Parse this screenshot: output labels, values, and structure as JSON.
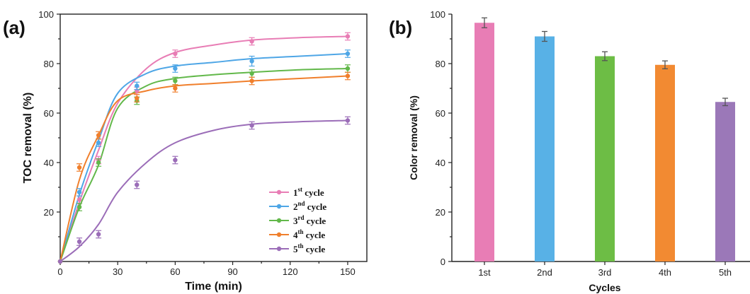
{
  "chart_data": [
    {
      "panel_label": "(a)",
      "type": "scatter",
      "xlabel": "Time (min)",
      "ylabel": "TOC removal  (%)",
      "xlim": [
        0,
        160
      ],
      "ylim": [
        0,
        100
      ],
      "x_ticks": [
        0,
        30,
        60,
        90,
        120,
        150
      ],
      "y_ticks": [
        20,
        40,
        60,
        80,
        100
      ],
      "legend_placement": "lower-right",
      "series": [
        {
          "name_num": "1",
          "name_sup": "st",
          "name_rest": " cycle",
          "color": "#e87db5",
          "x": [
            0,
            10,
            20,
            40,
            60,
            100,
            150
          ],
          "y": [
            0,
            25,
            41,
            69,
            84,
            89,
            91
          ],
          "err": [
            0,
            1.5,
            1.5,
            1.5,
            1.5,
            1.5,
            1.5
          ],
          "fit_y": [
            0,
            24,
            45,
            64,
            78,
            84.5,
            87.5,
            89.5,
            90.5,
            91
          ]
        },
        {
          "name_num": "2",
          "name_sup": "nd",
          "name_rest": " cycle",
          "color": "#4ea6e6",
          "x": [
            0,
            10,
            20,
            40,
            60,
            100,
            150
          ],
          "y": [
            0,
            28,
            48,
            71,
            78,
            81,
            84
          ],
          "err": [
            0,
            1.5,
            1.5,
            1.5,
            1.5,
            2,
            1.5
          ],
          "fit_y": [
            0,
            27,
            49,
            68,
            76,
            79,
            80.5,
            82,
            83,
            84
          ]
        },
        {
          "name_num": "3",
          "name_sup": "rd",
          "name_rest": " cycle",
          "color": "#62b84a",
          "x": [
            0,
            10,
            20,
            40,
            60,
            100,
            150
          ],
          "y": [
            0,
            22,
            40,
            65,
            73,
            76,
            78
          ],
          "err": [
            0,
            1.5,
            1.5,
            1.5,
            1.5,
            1.5,
            1.5
          ],
          "fit_y": [
            0,
            22,
            39,
            62,
            71,
            74,
            75.5,
            76.5,
            77.5,
            78
          ]
        },
        {
          "name_num": "4",
          "name_sup": "th",
          "name_rest": " cycle",
          "color": "#f07f2c",
          "x": [
            0,
            10,
            20,
            40,
            60,
            100,
            150
          ],
          "y": [
            0,
            38,
            51,
            66,
            70,
            73,
            75
          ],
          "err": [
            0,
            1.5,
            1.5,
            1.5,
            1.5,
            1.5,
            1.5
          ],
          "fit_y": [
            0,
            33,
            51,
            65,
            69,
            71,
            72,
            73,
            74,
            75
          ]
        },
        {
          "name_num": "5",
          "name_sup": "th",
          "name_rest": " cycle",
          "color": "#9b6db8",
          "x": [
            0,
            10,
            20,
            40,
            60,
            100,
            150
          ],
          "y": [
            0,
            8,
            11,
            31,
            41,
            55,
            57
          ],
          "err": [
            0,
            1.5,
            1.5,
            1.5,
            1.5,
            1.5,
            1.5
          ],
          "fit_y": [
            0,
            6,
            15,
            28,
            40,
            48,
            53,
            55.5,
            56.5,
            57
          ]
        }
      ],
      "fit_x": [
        0,
        10,
        20,
        30,
        45,
        60,
        80,
        100,
        125,
        150
      ]
    },
    {
      "panel_label": "(b)",
      "type": "bar",
      "xlabel": "Cycles",
      "ylabel": "Color removal (%)",
      "ylim": [
        0,
        100
      ],
      "y_ticks": [
        0,
        20,
        40,
        60,
        80,
        100
      ],
      "categories": [
        "1st",
        "2nd",
        "3rd",
        "4th",
        "5th"
      ],
      "values": [
        96.5,
        91,
        83,
        79.5,
        64.5
      ],
      "errors": [
        2,
        2,
        1.8,
        1.6,
        1.5
      ],
      "colors": [
        "#e87db5",
        "#58b1e6",
        "#6dbd45",
        "#f28a32",
        "#9b78b8"
      ]
    }
  ]
}
